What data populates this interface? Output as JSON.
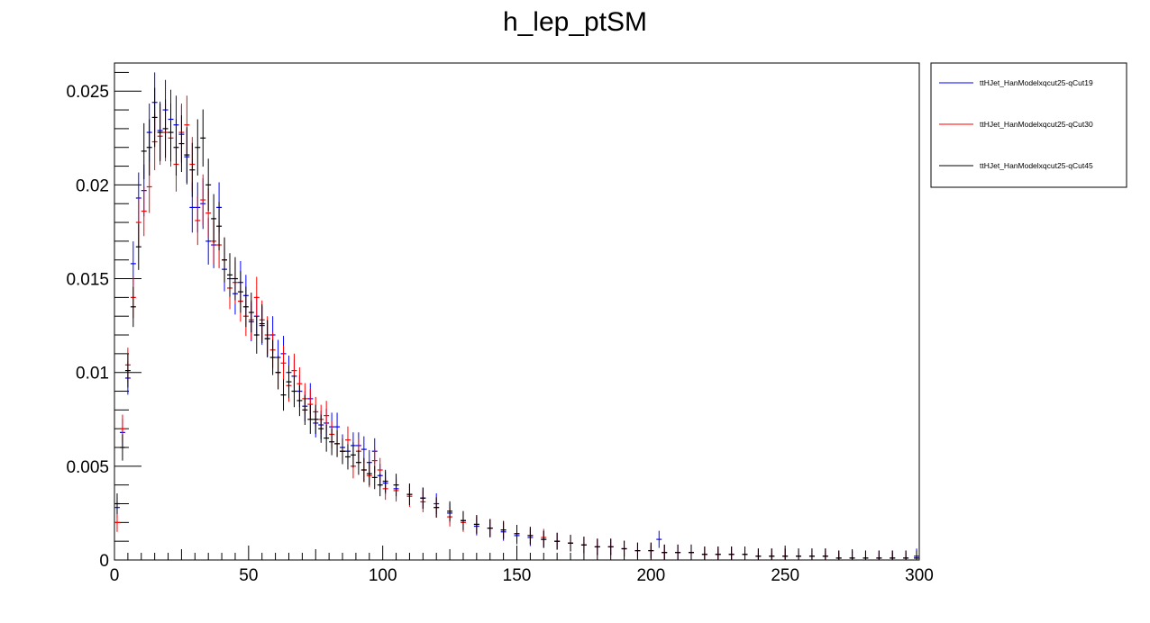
{
  "chart_data": {
    "type": "scatter",
    "title": "h_lep_ptSM",
    "xlabel": "",
    "ylabel": "",
    "xlim": [
      0,
      300
    ],
    "ylim": [
      0,
      0.0265
    ],
    "x_ticks": [
      0,
      50,
      100,
      150,
      200,
      250,
      300
    ],
    "x_tick_labels": [
      "0",
      "50",
      "100",
      "150",
      "200",
      "250",
      "300"
    ],
    "y_ticks": [
      0,
      0.005,
      0.01,
      0.015,
      0.02,
      0.025
    ],
    "y_tick_labels": [
      "0",
      "0.005",
      "0.01",
      "0.015",
      "0.02",
      "0.025"
    ],
    "bins": {
      "min": 0,
      "max": 300,
      "width": 2
    },
    "grid": false,
    "legend_position": "top-right-outside",
    "series": [
      {
        "name": "ttHJet_HanModelxqcut25-qCut19",
        "color": "#0000ff",
        "x": [
          1,
          3,
          5,
          7,
          9,
          11,
          13,
          15,
          17,
          19,
          21,
          23,
          25,
          27,
          29,
          31,
          33,
          35,
          37,
          39,
          41,
          43,
          45,
          47,
          49,
          51,
          53,
          55,
          57,
          59,
          61,
          63,
          65,
          67,
          69,
          71,
          73,
          75,
          77,
          79,
          81,
          83,
          85,
          87,
          89,
          91,
          93,
          95,
          97,
          99,
          101,
          105,
          110,
          115,
          120,
          125,
          130,
          135,
          140,
          145,
          150,
          155,
          160,
          165,
          170,
          175,
          180,
          185,
          190,
          195,
          200,
          203,
          205,
          210,
          215,
          220,
          225,
          230,
          235,
          240,
          245,
          250,
          255,
          260,
          265,
          270,
          275,
          280,
          285,
          290,
          295,
          299
        ],
        "y": [
          0.0028,
          0.0068,
          0.0097,
          0.0158,
          0.0193,
          0.0197,
          0.0228,
          0.0244,
          0.0229,
          0.024,
          0.0235,
          0.0232,
          0.0227,
          0.0215,
          0.0188,
          0.0188,
          0.019,
          0.017,
          0.0168,
          0.0188,
          0.0155,
          0.015,
          0.0142,
          0.0148,
          0.0141,
          0.0127,
          0.013,
          0.0125,
          0.0118,
          0.012,
          0.0108,
          0.011,
          0.01,
          0.0098,
          0.009,
          0.0082,
          0.0086,
          0.0073,
          0.0072,
          0.0073,
          0.0071,
          0.0071,
          0.006,
          0.0058,
          0.0061,
          0.0061,
          0.0059,
          0.0052,
          0.0058,
          0.0045,
          0.0041,
          0.0038,
          0.0035,
          0.0033,
          0.003,
          0.0025,
          0.0021,
          0.0018,
          0.0017,
          0.0015,
          0.0013,
          0.0012,
          0.0011,
          0.001,
          0.0009,
          0.0008,
          0.0007,
          0.0007,
          0.0006,
          0.0005,
          0.0005,
          0.0011,
          0.0004,
          0.0004,
          0.0004,
          0.0003,
          0.0003,
          0.0003,
          0.0003,
          0.0002,
          0.0002,
          0.0002,
          0.0002,
          0.0002,
          0.0002,
          0.0001,
          0.0001,
          0.0001,
          0.0001,
          0.0001,
          0.0001,
          0.0002
        ]
      },
      {
        "name": "ttHJet_HanModelxqcut25-qCut30",
        "color": "#ff0000",
        "x": [
          1,
          3,
          5,
          7,
          9,
          11,
          13,
          15,
          17,
          19,
          21,
          23,
          25,
          27,
          29,
          31,
          33,
          35,
          37,
          39,
          41,
          43,
          45,
          47,
          49,
          51,
          53,
          55,
          57,
          59,
          61,
          63,
          65,
          67,
          69,
          71,
          73,
          75,
          77,
          79,
          81,
          83,
          85,
          87,
          89,
          91,
          93,
          95,
          97,
          99,
          101,
          105,
          110,
          115,
          120,
          125,
          130,
          135,
          140,
          145,
          150,
          155,
          160,
          165,
          170,
          175,
          180,
          185,
          190,
          195,
          200,
          205,
          210,
          215,
          220,
          225,
          230,
          235,
          240,
          245,
          250,
          255,
          260,
          265,
          270,
          275,
          280,
          285,
          290,
          295,
          299
        ],
        "y": [
          0.002,
          0.007,
          0.0104,
          0.014,
          0.018,
          0.0186,
          0.0199,
          0.0223,
          0.0226,
          0.0228,
          0.0225,
          0.0211,
          0.0228,
          0.0232,
          0.0211,
          0.0181,
          0.0192,
          0.0185,
          0.017,
          0.0168,
          0.016,
          0.0145,
          0.0148,
          0.0138,
          0.013,
          0.0128,
          0.014,
          0.0128,
          0.012,
          0.0112,
          0.01,
          0.0105,
          0.0093,
          0.0101,
          0.0094,
          0.0086,
          0.0083,
          0.0079,
          0.0075,
          0.0077,
          0.0067,
          0.0062,
          0.0058,
          0.0064,
          0.005,
          0.0058,
          0.0048,
          0.0045,
          0.0053,
          0.0048,
          0.0038,
          0.0037,
          0.0034,
          0.0031,
          0.0028,
          0.0023,
          0.002,
          0.0019,
          0.0017,
          0.0016,
          0.0014,
          0.0013,
          0.0012,
          0.001,
          0.0009,
          0.0008,
          0.0007,
          0.0007,
          0.0006,
          0.0005,
          0.0005,
          0.0004,
          0.0004,
          0.0004,
          0.0003,
          0.0003,
          0.0003,
          0.0003,
          0.0002,
          0.0002,
          0.0002,
          0.0002,
          0.0002,
          0.0002,
          0.0001,
          0.0001,
          0.0001,
          0.0001,
          0.0001,
          0.0001,
          0.0001
        ]
      },
      {
        "name": "ttHJet_HanModelxqcut25-qCut45",
        "color": "#000000",
        "x": [
          1,
          3,
          5,
          7,
          9,
          11,
          13,
          15,
          17,
          19,
          21,
          23,
          25,
          27,
          29,
          31,
          33,
          35,
          37,
          39,
          41,
          43,
          45,
          47,
          49,
          51,
          53,
          55,
          57,
          59,
          61,
          63,
          65,
          67,
          69,
          71,
          73,
          75,
          77,
          79,
          81,
          83,
          85,
          87,
          89,
          91,
          93,
          95,
          97,
          99,
          101,
          105,
          110,
          115,
          120,
          125,
          130,
          135,
          140,
          145,
          150,
          155,
          160,
          165,
          170,
          175,
          180,
          185,
          190,
          195,
          200,
          205,
          210,
          215,
          220,
          225,
          230,
          235,
          240,
          245,
          250,
          255,
          260,
          265,
          270,
          275,
          280,
          285,
          290,
          295,
          299
        ],
        "y": [
          0.003,
          0.006,
          0.0101,
          0.0135,
          0.0167,
          0.0218,
          0.022,
          0.0236,
          0.0228,
          0.023,
          0.0228,
          0.022,
          0.0222,
          0.0216,
          0.0208,
          0.022,
          0.0225,
          0.02,
          0.0182,
          0.0178,
          0.016,
          0.0152,
          0.015,
          0.0143,
          0.0135,
          0.0132,
          0.012,
          0.0126,
          0.0118,
          0.0108,
          0.01,
          0.0088,
          0.0095,
          0.009,
          0.0085,
          0.008,
          0.0075,
          0.0075,
          0.007,
          0.0065,
          0.0063,
          0.0062,
          0.0058,
          0.0055,
          0.0056,
          0.0052,
          0.0048,
          0.0046,
          0.0044,
          0.004,
          0.0042,
          0.004,
          0.0035,
          0.0033,
          0.0028,
          0.0026,
          0.0021,
          0.0019,
          0.0017,
          0.0016,
          0.0014,
          0.0013,
          0.0011,
          0.001,
          0.0009,
          0.0008,
          0.0007,
          0.0007,
          0.0006,
          0.0005,
          0.0005,
          0.0004,
          0.0004,
          0.0004,
          0.0003,
          0.0003,
          0.0003,
          0.0003,
          0.0002,
          0.0002,
          0.0002,
          0.0002,
          0.0002,
          0.0002,
          0.0001,
          0.0001,
          0.0001,
          0.0001,
          0.0001,
          0.0001,
          0.0001
        ]
      }
    ]
  }
}
